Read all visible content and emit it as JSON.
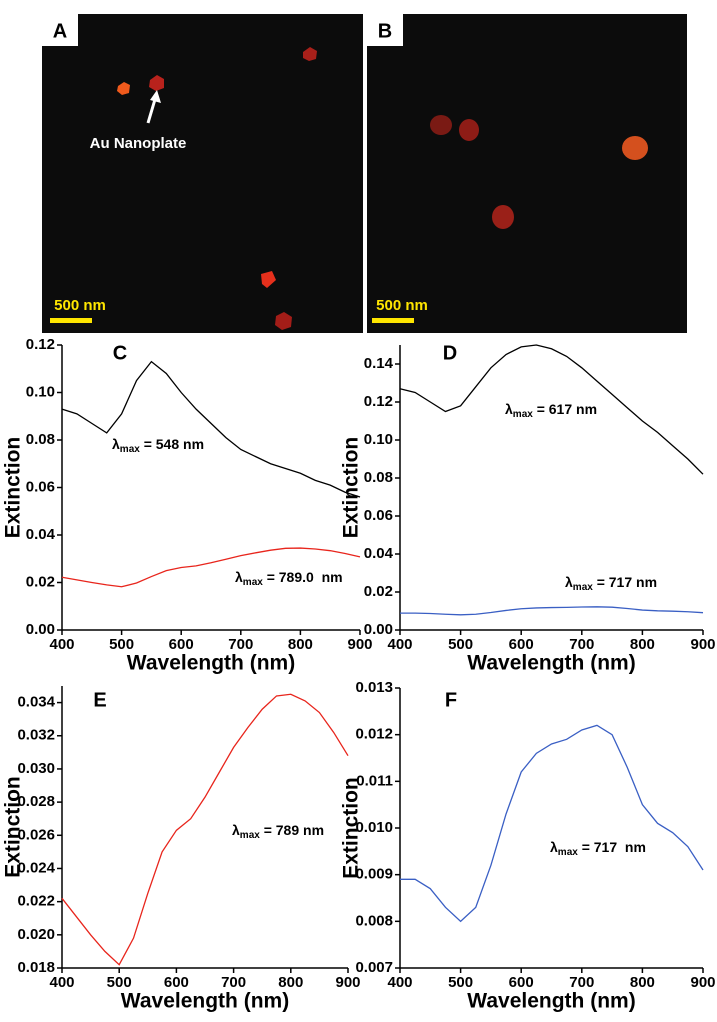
{
  "images": [
    {
      "panel": "A",
      "annotation": "Au Nanoplate",
      "scale_bar": "500 nm"
    },
    {
      "panel": "B",
      "scale_bar": "500 nm"
    }
  ],
  "chart_data": [
    {
      "type": "line",
      "panel": "C",
      "xlabel": "Wavelength (nm)",
      "ylabel": "Extinction",
      "x": [
        400,
        425,
        450,
        475,
        500,
        525,
        550,
        575,
        600,
        625,
        650,
        675,
        700,
        725,
        750,
        775,
        800,
        825,
        850,
        875,
        900
      ],
      "series": [
        {
          "color": "#000000",
          "values": [
            0.093,
            0.091,
            0.087,
            0.083,
            0.091,
            0.105,
            0.113,
            0.108,
            0.1,
            0.093,
            0.087,
            0.081,
            0.076,
            0.073,
            0.07,
            0.068,
            0.066,
            0.063,
            0.061,
            0.058,
            0.056
          ]
        },
        {
          "color": "#e8251c",
          "values": [
            0.0222,
            0.0211,
            0.02,
            0.019,
            0.0182,
            0.0198,
            0.0225,
            0.025,
            0.0263,
            0.027,
            0.0283,
            0.0298,
            0.0313,
            0.0325,
            0.0336,
            0.0344,
            0.0345,
            0.0341,
            0.0334,
            0.0322,
            0.0308
          ]
        }
      ],
      "annotations": [
        {
          "symbol": "λ",
          "sub": "max",
          "text": " = 548 nm"
        },
        {
          "symbol": "λ",
          "sub": "max",
          "text": " = 789.0  nm"
        }
      ],
      "xlim": [
        400,
        900
      ],
      "xticks": [
        400,
        500,
        600,
        700,
        800,
        900
      ],
      "ylim": [
        0,
        0.12
      ],
      "yticks": [
        {
          "value": 0,
          "label": "0.00"
        },
        {
          "value": 0.02,
          "label": "0.02"
        },
        {
          "value": 0.04,
          "label": "0.04"
        },
        {
          "value": 0.06,
          "label": "0.06"
        },
        {
          "value": 0.08,
          "label": "0.08"
        },
        {
          "value": 0.1,
          "label": "0.10"
        },
        {
          "value": 0.12,
          "label": "0.12"
        }
      ]
    },
    {
      "type": "line",
      "panel": "D",
      "xlabel": "Wavelength (nm)",
      "ylabel": "Extinction",
      "x": [
        400,
        425,
        450,
        475,
        500,
        525,
        550,
        575,
        600,
        625,
        650,
        675,
        700,
        725,
        750,
        775,
        800,
        825,
        850,
        875,
        900
      ],
      "series": [
        {
          "color": "#000000",
          "values": [
            0.127,
            0.125,
            0.12,
            0.115,
            0.118,
            0.128,
            0.138,
            0.145,
            0.149,
            0.15,
            0.148,
            0.144,
            0.138,
            0.131,
            0.124,
            0.117,
            0.11,
            0.104,
            0.097,
            0.09,
            0.082
          ]
        },
        {
          "color": "#3a5fc4",
          "values": [
            0.0089,
            0.0089,
            0.0087,
            0.0083,
            0.008,
            0.0083,
            0.0092,
            0.0103,
            0.0112,
            0.0116,
            0.0118,
            0.0119,
            0.0121,
            0.0122,
            0.012,
            0.0113,
            0.0105,
            0.0101,
            0.0099,
            0.0096,
            0.0091
          ]
        }
      ],
      "annotations": [
        {
          "symbol": "λ",
          "sub": "max",
          "text": " = 617 nm"
        },
        {
          "symbol": "λ",
          "sub": "max",
          "text": " = 717 nm"
        }
      ],
      "xlim": [
        400,
        900
      ],
      "xticks": [
        400,
        500,
        600,
        700,
        800,
        900
      ],
      "ylim": [
        0,
        0.15
      ],
      "yticks": [
        {
          "value": 0,
          "label": "0.00"
        },
        {
          "value": 0.02,
          "label": "0.02"
        },
        {
          "value": 0.04,
          "label": "0.04"
        },
        {
          "value": 0.06,
          "label": "0.06"
        },
        {
          "value": 0.08,
          "label": "0.08"
        },
        {
          "value": 0.1,
          "label": "0.10"
        },
        {
          "value": 0.12,
          "label": "0.12"
        },
        {
          "value": 0.14,
          "label": "0.14"
        }
      ]
    },
    {
      "type": "line",
      "panel": "E",
      "xlabel": "Wavelength (nm)",
      "ylabel": "Extinction",
      "x": [
        400,
        425,
        450,
        475,
        500,
        525,
        550,
        575,
        600,
        625,
        650,
        675,
        700,
        725,
        750,
        775,
        800,
        825,
        850,
        875,
        900
      ],
      "series": [
        {
          "color": "#e8251c",
          "values": [
            0.0222,
            0.0211,
            0.02,
            0.019,
            0.0182,
            0.0198,
            0.0225,
            0.025,
            0.0263,
            0.027,
            0.0283,
            0.0298,
            0.0313,
            0.0325,
            0.0336,
            0.0344,
            0.0345,
            0.0341,
            0.0334,
            0.0322,
            0.0308
          ]
        }
      ],
      "annotations": [
        {
          "symbol": "λ",
          "sub": "max",
          "text": " = 789 nm"
        }
      ],
      "xlim": [
        400,
        900
      ],
      "xticks": [
        400,
        500,
        600,
        700,
        800,
        900
      ],
      "ylim": [
        0.018,
        0.035
      ],
      "yticks": [
        {
          "value": 0.018,
          "label": "0.018"
        },
        {
          "value": 0.02,
          "label": "0.020"
        },
        {
          "value": 0.022,
          "label": "0.022"
        },
        {
          "value": 0.024,
          "label": "0.024"
        },
        {
          "value": 0.026,
          "label": "0.026"
        },
        {
          "value": 0.028,
          "label": "0.028"
        },
        {
          "value": 0.03,
          "label": "0.030"
        },
        {
          "value": 0.032,
          "label": "0.032"
        },
        {
          "value": 0.034,
          "label": "0.034"
        }
      ]
    },
    {
      "type": "line",
      "panel": "F",
      "xlabel": "Wavelength (nm)",
      "ylabel": "Extinction",
      "x": [
        400,
        425,
        450,
        475,
        500,
        525,
        550,
        575,
        600,
        625,
        650,
        675,
        700,
        725,
        750,
        775,
        800,
        825,
        850,
        875,
        900
      ],
      "series": [
        {
          "color": "#3a5fc4",
          "values": [
            0.0089,
            0.0089,
            0.0087,
            0.0083,
            0.008,
            0.0083,
            0.0092,
            0.0103,
            0.0112,
            0.0116,
            0.0118,
            0.0119,
            0.0121,
            0.0122,
            0.012,
            0.0113,
            0.0105,
            0.0101,
            0.0099,
            0.0096,
            0.0091
          ]
        }
      ],
      "annotations": [
        {
          "symbol": "λ",
          "sub": "max",
          "text": " = 717  nm"
        }
      ],
      "xlim": [
        400,
        900
      ],
      "xticks": [
        400,
        500,
        600,
        700,
        800,
        900
      ],
      "ylim": [
        0.007,
        0.013
      ],
      "yticks": [
        {
          "value": 0.007,
          "label": "0.007"
        },
        {
          "value": 0.008,
          "label": "0.008"
        },
        {
          "value": 0.009,
          "label": "0.009"
        },
        {
          "value": 0.01,
          "label": "0.010"
        },
        {
          "value": 0.011,
          "label": "0.011"
        },
        {
          "value": 0.012,
          "label": "0.012"
        },
        {
          "value": 0.013,
          "label": "0.013"
        }
      ]
    }
  ]
}
